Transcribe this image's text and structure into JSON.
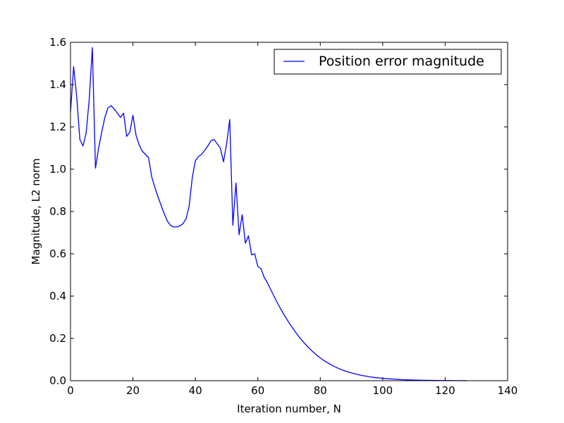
{
  "chart_data": {
    "type": "line",
    "title": "",
    "xlabel": "Iteration number, N",
    "ylabel": "Magnitude, L2 norm",
    "xlim": [
      0,
      140
    ],
    "ylim": [
      0.0,
      1.6
    ],
    "xticks": [
      0,
      20,
      40,
      60,
      80,
      100,
      120,
      140
    ],
    "xtick_labels": [
      "0",
      "20",
      "40",
      "60",
      "80",
      "100",
      "120",
      "140"
    ],
    "yticks": [
      0.0,
      0.2,
      0.4,
      0.6,
      0.8,
      1.0,
      1.2,
      1.4,
      1.6
    ],
    "ytick_labels": [
      "0.0",
      "0.2",
      "0.4",
      "0.6",
      "0.8",
      "1.0",
      "1.2",
      "1.4",
      "1.6"
    ],
    "grid": false,
    "legend_position": "top-right",
    "series": [
      {
        "name": "Position error magnitude",
        "color": "#0000ff",
        "x": [
          0,
          1,
          2,
          3,
          4,
          5,
          6,
          7,
          8,
          9,
          10,
          11,
          12,
          13,
          14,
          15,
          16,
          17,
          18,
          19,
          20,
          21,
          22,
          23,
          24,
          25,
          26,
          27,
          28,
          29,
          30,
          31,
          32,
          33,
          34,
          35,
          36,
          37,
          38,
          39,
          40,
          41,
          42,
          43,
          44,
          45,
          46,
          47,
          48,
          49,
          50,
          51,
          52,
          53,
          54,
          55,
          56,
          57,
          58,
          59,
          60,
          61,
          62,
          63,
          64,
          65,
          66,
          67,
          68,
          69,
          70,
          71,
          72,
          73,
          74,
          75,
          76,
          77,
          78,
          79,
          80,
          81,
          82,
          83,
          84,
          85,
          86,
          87,
          88,
          89,
          90,
          91,
          92,
          93,
          94,
          95,
          96,
          97,
          98,
          99,
          100,
          101,
          102,
          103,
          104,
          105,
          106,
          107,
          108,
          109,
          110,
          111,
          112,
          113,
          114,
          115,
          116,
          117,
          118,
          119,
          120,
          121,
          122,
          123,
          124,
          125,
          126,
          127
        ],
        "y": [
          1.27,
          1.485,
          1.34,
          1.14,
          1.11,
          1.17,
          1.33,
          1.575,
          1.005,
          1.1,
          1.175,
          1.245,
          1.29,
          1.3,
          1.285,
          1.265,
          1.245,
          1.265,
          1.155,
          1.175,
          1.255,
          1.16,
          1.115,
          1.085,
          1.07,
          1.055,
          0.965,
          0.915,
          0.87,
          0.83,
          0.79,
          0.755,
          0.735,
          0.727,
          0.727,
          0.732,
          0.742,
          0.765,
          0.825,
          0.96,
          1.04,
          1.06,
          1.07,
          1.09,
          1.11,
          1.135,
          1.14,
          1.12,
          1.1,
          1.035,
          1.12,
          1.235,
          0.735,
          0.935,
          0.69,
          0.785,
          0.65,
          0.685,
          0.595,
          0.6,
          0.54,
          0.53,
          0.49,
          0.465,
          0.435,
          0.405,
          0.375,
          0.348,
          0.322,
          0.297,
          0.274,
          0.252,
          0.231,
          0.211,
          0.193,
          0.176,
          0.16,
          0.146,
          0.132,
          0.119,
          0.108,
          0.097,
          0.088,
          0.079,
          0.071,
          0.064,
          0.057,
          0.051,
          0.046,
          0.041,
          0.037,
          0.033,
          0.029,
          0.026,
          0.023,
          0.021,
          0.018,
          0.016,
          0.014,
          0.013,
          0.011,
          0.01,
          0.009,
          0.008,
          0.007,
          0.006,
          0.005,
          0.0045,
          0.004,
          0.0035,
          0.003,
          0.0027,
          0.0024,
          0.0021,
          0.0018,
          0.0016,
          0.0014,
          0.0012,
          0.001,
          0.0009,
          0.0008,
          0.0007,
          0.0006,
          0.0005,
          0.0004,
          0.0003,
          0.0002,
          0.0001
        ]
      }
    ]
  }
}
